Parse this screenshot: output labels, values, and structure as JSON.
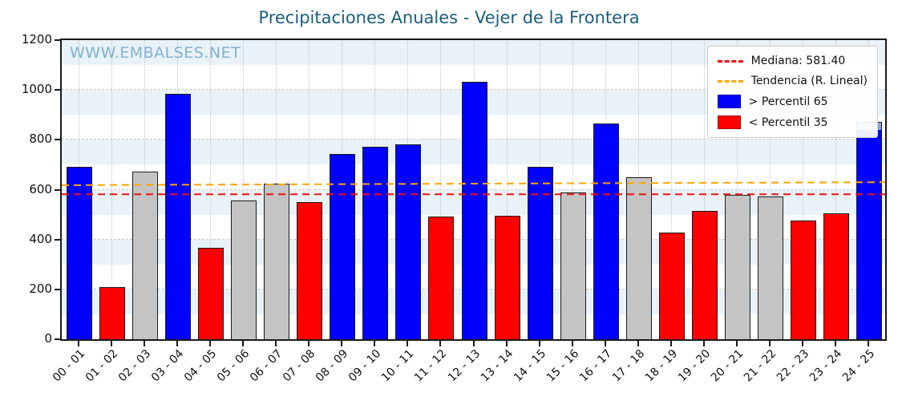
{
  "title": "Precipitaciones Anuales - Vejer de la Frontera",
  "watermark": "WWW.EMBALSES.NET",
  "legend": {
    "median": "Mediana: 581.40",
    "trend": "Tendencia (R. Lineal)",
    "above": "> Percentil 65",
    "below": "< Percentil 35"
  },
  "colors": {
    "above": "#0000ff",
    "below": "#ff0000",
    "mid": "#c4c4c4",
    "partial": "#8aa4e0",
    "median_line": "#ee1111",
    "trend_line": "#ffa500",
    "band": "#e8f2f8",
    "title": "#1b5e7b",
    "watermark": "#82b0d0"
  },
  "chart_data": {
    "type": "bar",
    "title": "Precipitaciones Anuales - Vejer de la Frontera",
    "xlabel": "",
    "ylabel": "",
    "ylim": [
      0,
      1200
    ],
    "yticks": [
      0,
      200,
      400,
      600,
      800,
      1000,
      1200
    ],
    "band_step": 100,
    "grid": true,
    "legend_position": "upper right",
    "median": 581.4,
    "trend": {
      "start": 618,
      "end": 630
    },
    "categories": [
      "00 - 01",
      "01 - 02",
      "02 - 03",
      "03 - 04",
      "04 - 05",
      "05 - 06",
      "06 - 07",
      "07 - 08",
      "08 - 09",
      "09 - 10",
      "10 - 11",
      "11 - 12",
      "12 - 13",
      "13 - 14",
      "14 - 15",
      "15 - 16",
      "16 - 17",
      "17 - 18",
      "18 - 19",
      "19 - 20",
      "20 - 21",
      "21 - 22",
      "22 - 23",
      "23 - 24",
      "24 - 25"
    ],
    "values": [
      690,
      205,
      670,
      980,
      365,
      555,
      620,
      548,
      740,
      768,
      778,
      490,
      1030,
      492,
      690,
      585,
      862,
      648,
      425,
      510,
      575,
      570,
      472,
      503,
      870
    ],
    "status": [
      "above",
      "below",
      "mid",
      "above",
      "below",
      "mid",
      "mid",
      "below",
      "above",
      "above",
      "above",
      "below",
      "above",
      "below",
      "above",
      "mid",
      "above",
      "mid",
      "below",
      "below",
      "mid",
      "mid",
      "below",
      "below",
      "above"
    ],
    "partial": {
      "category": "24 - 25",
      "solid_value": 840
    }
  }
}
